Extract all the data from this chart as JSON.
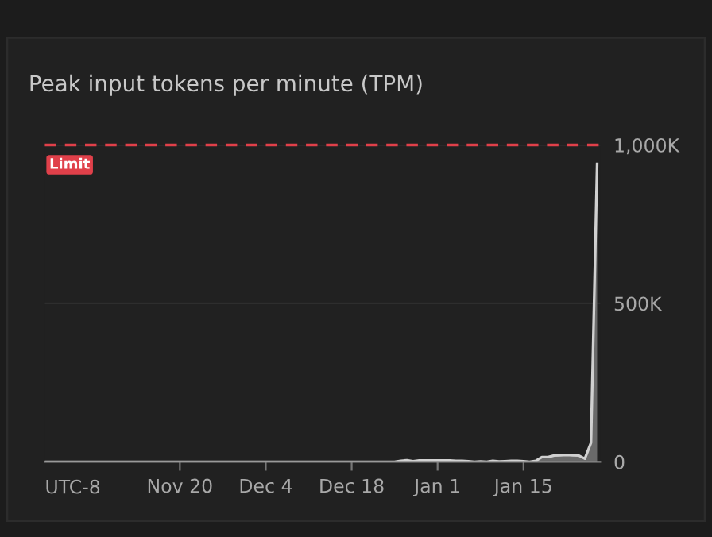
{
  "chart_data": {
    "type": "area",
    "title": "Peak input tokens per minute (TPM)",
    "categories": [
      null,
      null,
      null,
      null,
      null,
      null,
      null,
      null,
      null,
      null,
      null,
      null,
      null,
      null,
      null,
      null,
      null,
      null,
      null,
      null,
      null,
      null,
      "Nov 20",
      null,
      null,
      null,
      null,
      null,
      null,
      null,
      null,
      null,
      null,
      null,
      null,
      null,
      "Dec 4",
      null,
      null,
      null,
      null,
      null,
      null,
      null,
      null,
      null,
      null,
      null,
      null,
      null,
      "Dec 18",
      null,
      null,
      null,
      null,
      null,
      null,
      null,
      null,
      null,
      null,
      null,
      null,
      null,
      "Jan 1",
      null,
      null,
      null,
      null,
      null,
      null,
      null,
      null,
      null,
      null,
      null,
      null,
      null,
      "Jan 15",
      null,
      null,
      null,
      null,
      null,
      null,
      null,
      null,
      null,
      null,
      null,
      null
    ],
    "ylim": [
      0,
      1000000
    ],
    "yticks": [
      0,
      {
        "value": 500000,
        "label": "500K"
      },
      {
        "value": 1000000,
        "label": "1,000K"
      }
    ],
    "grid": "y",
    "annotations": [
      "UTC-8"
    ],
    "ref_lines": [
      {
        "axis": "y",
        "value": 1000000,
        "label": "Limit",
        "color": "#e0404a",
        "line_style": "dashed"
      }
    ],
    "series": [
      {
        "color": "#d0d0d0",
        "values": [
          0,
          0,
          0,
          0,
          0,
          0,
          0,
          0,
          0,
          0,
          0,
          0,
          0,
          0,
          0,
          0,
          0,
          0,
          0,
          0,
          0,
          0,
          0,
          0,
          0,
          0,
          0,
          0,
          0,
          0,
          0,
          0,
          0,
          0,
          0,
          0,
          0,
          0,
          0,
          0,
          0,
          0,
          0,
          0,
          0,
          0,
          0,
          0,
          0,
          0,
          0,
          0,
          0,
          0,
          0,
          0,
          0,
          0,
          3000,
          5000,
          2000,
          4000,
          4000,
          4000,
          4000,
          4000,
          4000,
          3000,
          3000,
          2000,
          0,
          1000,
          0,
          3000,
          1000,
          2000,
          3000,
          3000,
          2000,
          0,
          3000,
          15000,
          15000,
          20000,
          21000,
          22000,
          21000,
          20000,
          10000,
          60000,
          940000
        ]
      }
    ]
  }
}
